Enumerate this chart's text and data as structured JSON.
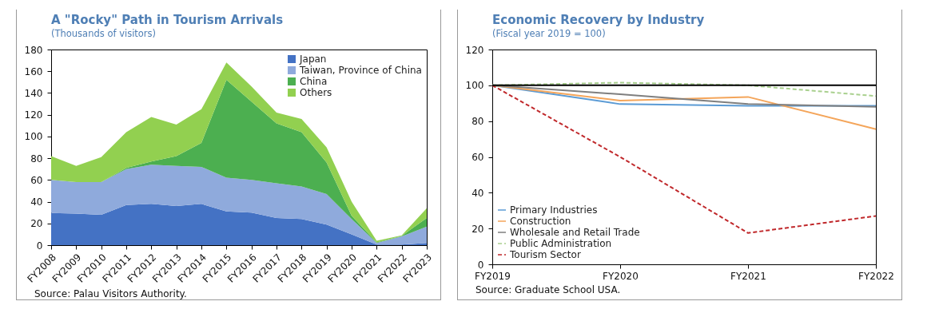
{
  "chart_data": [
    {
      "type": "area",
      "stacked": true,
      "title": "A \"Rocky\" Path in Tourism Arrivals",
      "subtitle": "(Thousands of visitors)",
      "categories": [
        "FY2008",
        "FY2009",
        "FY2010",
        "FY2011",
        "FY2012",
        "FY2013",
        "FY2014",
        "FY2015",
        "FY2016",
        "FY2017",
        "FY2018",
        "FY2019",
        "FY2020",
        "FY2021",
        "FY2022",
        "FY2023"
      ],
      "series": [
        {
          "name": "Japan",
          "color": "#4472c4",
          "values": [
            29.5,
            29,
            28,
            37,
            38,
            36,
            38,
            31,
            30,
            25,
            24,
            19,
            10,
            0.5,
            0.5,
            2
          ]
        },
        {
          "name": "Taiwan, Province of China",
          "color": "#8faadc",
          "values": [
            30.5,
            29,
            30,
            33,
            36,
            37,
            34,
            31,
            30,
            32,
            30,
            28,
            14,
            1.5,
            7.5,
            15
          ]
        },
        {
          "name": "China",
          "color": "#4caf50",
          "values": [
            0,
            0,
            0,
            1,
            3,
            9,
            22,
            90,
            72,
            55,
            50,
            29,
            3,
            0.5,
            0.5,
            8
          ]
        },
        {
          "name": "Others",
          "color": "#92d050",
          "values": [
            22,
            15,
            23,
            33,
            41,
            29,
            31,
            16,
            14,
            10,
            12,
            14,
            13,
            1.5,
            0.5,
            9
          ]
        }
      ],
      "ylim": [
        0,
        180
      ],
      "yticks": [
        0,
        20,
        40,
        60,
        80,
        100,
        120,
        140,
        160,
        180
      ],
      "legend": "top right",
      "annotations": [
        "Source: Palau Visitors Authority."
      ]
    },
    {
      "type": "line",
      "title": "Economic Recovery by Industry",
      "subtitle": "(Fiscal year 2019 = 100)",
      "categories": [
        "FY2019",
        "FY2020",
        "FY2021",
        "FY2022"
      ],
      "series": [
        {
          "name": "Primary Industries",
          "color": "#5b9bd5",
          "values": [
            100,
            89.5,
            88.5,
            88.5
          ]
        },
        {
          "name": "Construction",
          "color": "#f4a55a",
          "values": [
            100,
            91.5,
            93.5,
            75.5
          ]
        },
        {
          "name": "Wholesale and Retail Trade",
          "color": "#7f7f7f",
          "values": [
            100,
            95,
            89.5,
            88
          ]
        },
        {
          "name": "Public Administration",
          "color": "#a9d08e",
          "values": [
            100,
            101.5,
            100,
            94
          ],
          "line_style": "dashed"
        },
        {
          "name": "Tourism Sector",
          "color": "#c0282b",
          "values": [
            100,
            60,
            17.5,
            27
          ],
          "line_style": "dashed"
        }
      ],
      "ylim": [
        0,
        120
      ],
      "yticks": [
        0,
        20,
        40,
        60,
        80,
        100,
        120
      ],
      "ref_lines": [
        {
          "axis": "y",
          "value": 100,
          "color": "#000000"
        }
      ],
      "legend": "bottom left",
      "annotations": [
        "Source: Graduate School USA."
      ]
    }
  ]
}
